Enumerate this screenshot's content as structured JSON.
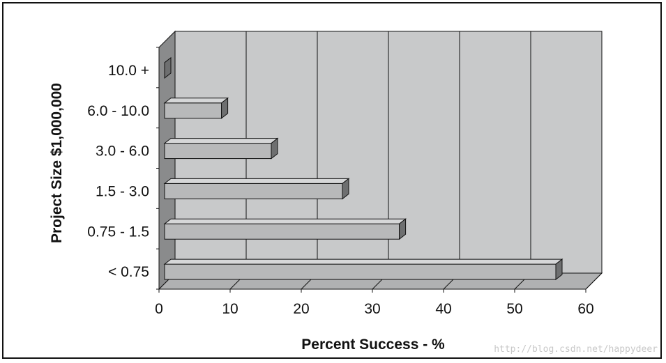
{
  "chart_data": {
    "type": "bar",
    "orientation": "horizontal",
    "style": "3d",
    "categories": [
      "< 0.75",
      "0.75 - 1.5",
      "1.5 - 3.0",
      "3.0 - 6.0",
      "6.0 - 10.0",
      "10.0 +"
    ],
    "values": [
      55,
      33,
      25,
      15,
      8,
      0
    ],
    "xlabel": "Percent Success - %",
    "ylabel": "Project Size $1,000,000",
    "xlim": [
      0,
      60
    ],
    "xticks": [
      0,
      10,
      20,
      30,
      40,
      50,
      60
    ],
    "grid": true,
    "colors": {
      "wall": "#c8c9ca",
      "side_wall": "#8a8b8c",
      "floor": "#b0b1b2",
      "bar_front": "#b8b9ba",
      "bar_top": "#d6d7d8",
      "bar_end": "#6e6f70"
    }
  },
  "watermark": "http://blog.csdn.net/happydeer"
}
